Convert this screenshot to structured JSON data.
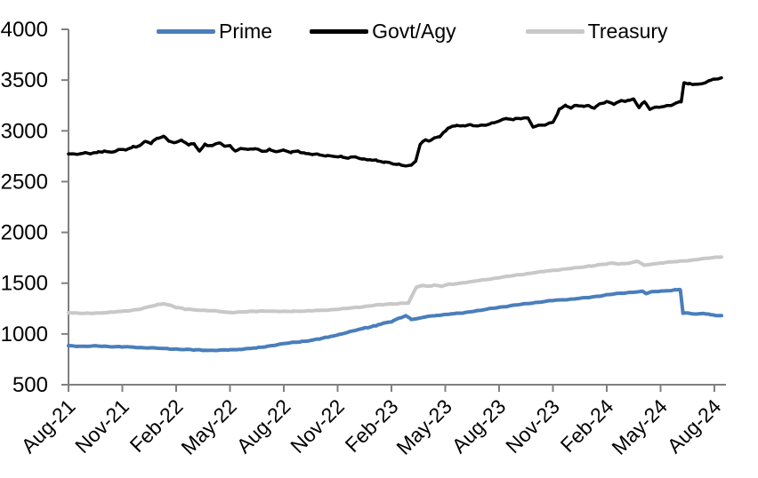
{
  "chart_data": {
    "type": "line",
    "title": "",
    "grid": false,
    "legend_position": "top",
    "x_axis": {
      "unit": "months since Aug-2021",
      "tick_interval_months": 3,
      "tick_labels": [
        "Aug-21",
        "Nov-21",
        "Feb-22",
        "May-22",
        "Aug-22",
        "Nov-22",
        "Feb-23",
        "May-23",
        "Aug-23",
        "Nov-23",
        "Feb-24",
        "May-24",
        "Aug-24"
      ],
      "range_months": [
        0,
        36.6
      ]
    },
    "y_axis": {
      "min": 500,
      "max": 4000,
      "tick_step": 500,
      "tick_labels": [
        "4000",
        "3500",
        "3000",
        "2500",
        "2000",
        "1500",
        "1000",
        "500"
      ]
    },
    "series": [
      {
        "name": "Prime",
        "color": "#4a7ebb",
        "points": [
          [
            0,
            885
          ],
          [
            0.5,
            880
          ],
          [
            1,
            878
          ],
          [
            1.5,
            882
          ],
          [
            2,
            878
          ],
          [
            2.5,
            874
          ],
          [
            3,
            872
          ],
          [
            3.5,
            870
          ],
          [
            4,
            866
          ],
          [
            4.5,
            864
          ],
          [
            5,
            860
          ],
          [
            5.5,
            855
          ],
          [
            6,
            850
          ],
          [
            6.5,
            846
          ],
          [
            7,
            843
          ],
          [
            7.5,
            840
          ],
          [
            8,
            838
          ],
          [
            8.5,
            840
          ],
          [
            9,
            844
          ],
          [
            9.5,
            848
          ],
          [
            10,
            855
          ],
          [
            10.5,
            862
          ],
          [
            11,
            875
          ],
          [
            11.5,
            890
          ],
          [
            12,
            905
          ],
          [
            12.5,
            915
          ],
          [
            13,
            925
          ],
          [
            13.5,
            938
          ],
          [
            14,
            952
          ],
          [
            14.5,
            970
          ],
          [
            15,
            990
          ],
          [
            15.5,
            1012
          ],
          [
            16,
            1035
          ],
          [
            16.5,
            1058
          ],
          [
            17,
            1078
          ],
          [
            17.1,
            1075
          ],
          [
            17.25,
            1092
          ],
          [
            17.6,
            1105
          ],
          [
            18,
            1122
          ],
          [
            18.4,
            1152
          ],
          [
            18.8,
            1180
          ],
          [
            19.1,
            1145
          ],
          [
            19.5,
            1150
          ],
          [
            20,
            1172
          ],
          [
            20.5,
            1183
          ],
          [
            21,
            1192
          ],
          [
            21.5,
            1200
          ],
          [
            22,
            1208
          ],
          [
            22.5,
            1222
          ],
          [
            23,
            1232
          ],
          [
            23.5,
            1248
          ],
          [
            24,
            1262
          ],
          [
            24.5,
            1275
          ],
          [
            25,
            1288
          ],
          [
            25.5,
            1298
          ],
          [
            26,
            1308
          ],
          [
            26.5,
            1318
          ],
          [
            27,
            1328
          ],
          [
            27.5,
            1335
          ],
          [
            28,
            1342
          ],
          [
            28.5,
            1352
          ],
          [
            29,
            1360
          ],
          [
            29.5,
            1372
          ],
          [
            30,
            1385
          ],
          [
            30.5,
            1395
          ],
          [
            31,
            1402
          ],
          [
            31.5,
            1412
          ],
          [
            32,
            1420
          ],
          [
            32.2,
            1398
          ],
          [
            32.5,
            1415
          ],
          [
            33,
            1422
          ],
          [
            33.4,
            1428
          ],
          [
            33.8,
            1432
          ],
          [
            34.1,
            1437
          ],
          [
            34.25,
            1205
          ],
          [
            34.6,
            1202
          ],
          [
            35,
            1196
          ],
          [
            35.4,
            1202
          ],
          [
            35.8,
            1190
          ],
          [
            36.1,
            1182
          ],
          [
            36.4,
            1180
          ]
        ]
      },
      {
        "name": "Govt/Agy",
        "color": "#000000",
        "points": [
          [
            0,
            2780
          ],
          [
            0.4,
            2768
          ],
          [
            0.8,
            2778
          ],
          [
            1.2,
            2772
          ],
          [
            1.6,
            2788
          ],
          [
            2,
            2800
          ],
          [
            2.4,
            2792
          ],
          [
            2.8,
            2812
          ],
          [
            3.2,
            2820
          ],
          [
            3.6,
            2838
          ],
          [
            4,
            2862
          ],
          [
            4.3,
            2898
          ],
          [
            4.6,
            2878
          ],
          [
            5,
            2928
          ],
          [
            5.3,
            2945
          ],
          [
            5.6,
            2902
          ],
          [
            6,
            2882
          ],
          [
            6.3,
            2908
          ],
          [
            6.7,
            2862
          ],
          [
            7,
            2878
          ],
          [
            7.3,
            2802
          ],
          [
            7.6,
            2868
          ],
          [
            8,
            2852
          ],
          [
            8.4,
            2886
          ],
          [
            8.7,
            2840
          ],
          [
            9,
            2858
          ],
          [
            9.3,
            2792
          ],
          [
            9.6,
            2832
          ],
          [
            10,
            2812
          ],
          [
            10.4,
            2825
          ],
          [
            10.8,
            2802
          ],
          [
            11.2,
            2815
          ],
          [
            11.6,
            2800
          ],
          [
            12,
            2805
          ],
          [
            12.4,
            2790
          ],
          [
            12.8,
            2798
          ],
          [
            13.2,
            2778
          ],
          [
            13.6,
            2768
          ],
          [
            14,
            2762
          ],
          [
            14.4,
            2752
          ],
          [
            14.8,
            2758
          ],
          [
            15.2,
            2742
          ],
          [
            15.6,
            2735
          ],
          [
            16,
            2742
          ],
          [
            16.4,
            2722
          ],
          [
            16.8,
            2715
          ],
          [
            17.2,
            2705
          ],
          [
            17.6,
            2688
          ],
          [
            18,
            2682
          ],
          [
            18.4,
            2668
          ],
          [
            18.8,
            2662
          ],
          [
            19.1,
            2658
          ],
          [
            19.35,
            2705
          ],
          [
            19.6,
            2865
          ],
          [
            19.9,
            2918
          ],
          [
            20.1,
            2902
          ],
          [
            20.4,
            2928
          ],
          [
            20.7,
            2948
          ],
          [
            21,
            2995
          ],
          [
            21.3,
            3042
          ],
          [
            21.6,
            3048
          ],
          [
            22,
            3052
          ],
          [
            22.4,
            3062
          ],
          [
            22.8,
            3048
          ],
          [
            23.2,
            3058
          ],
          [
            23.6,
            3072
          ],
          [
            24,
            3105
          ],
          [
            24.4,
            3118
          ],
          [
            24.8,
            3108
          ],
          [
            25.2,
            3122
          ],
          [
            25.6,
            3128
          ],
          [
            25.9,
            3042
          ],
          [
            26.2,
            3052
          ],
          [
            26.6,
            3060
          ],
          [
            27,
            3085
          ],
          [
            27.35,
            3208
          ],
          [
            27.7,
            3255
          ],
          [
            28,
            3228
          ],
          [
            28.3,
            3252
          ],
          [
            28.7,
            3235
          ],
          [
            29,
            3248
          ],
          [
            29.3,
            3222
          ],
          [
            29.6,
            3268
          ],
          [
            30,
            3282
          ],
          [
            30.4,
            3268
          ],
          [
            30.8,
            3295
          ],
          [
            31.2,
            3302
          ],
          [
            31.5,
            3318
          ],
          [
            31.8,
            3232
          ],
          [
            32.1,
            3288
          ],
          [
            32.4,
            3212
          ],
          [
            32.8,
            3232
          ],
          [
            33.2,
            3242
          ],
          [
            33.6,
            3252
          ],
          [
            34,
            3278
          ],
          [
            34.15,
            3288
          ],
          [
            34.3,
            3478
          ],
          [
            34.6,
            3458
          ],
          [
            35,
            3468
          ],
          [
            35.3,
            3462
          ],
          [
            35.7,
            3492
          ],
          [
            36,
            3505
          ],
          [
            36.4,
            3522
          ]
        ]
      },
      {
        "name": "Treasury",
        "color": "#c8c8c8",
        "points": [
          [
            0,
            1210
          ],
          [
            0.5,
            1204
          ],
          [
            1,
            1202
          ],
          [
            1.5,
            1206
          ],
          [
            2,
            1210
          ],
          [
            2.5,
            1215
          ],
          [
            3,
            1222
          ],
          [
            3.5,
            1232
          ],
          [
            4,
            1245
          ],
          [
            4.5,
            1268
          ],
          [
            5,
            1288
          ],
          [
            5.3,
            1300
          ],
          [
            5.7,
            1282
          ],
          [
            6,
            1262
          ],
          [
            6.5,
            1245
          ],
          [
            7,
            1238
          ],
          [
            7.5,
            1232
          ],
          [
            8,
            1228
          ],
          [
            8.5,
            1220
          ],
          [
            9,
            1212
          ],
          [
            9.5,
            1216
          ],
          [
            10,
            1220
          ],
          [
            10.5,
            1224
          ],
          [
            11,
            1226
          ],
          [
            11.5,
            1222
          ],
          [
            12,
            1220
          ],
          [
            12.5,
            1224
          ],
          [
            13,
            1226
          ],
          [
            13.5,
            1229
          ],
          [
            14,
            1232
          ],
          [
            14.5,
            1236
          ],
          [
            15,
            1242
          ],
          [
            15.5,
            1250
          ],
          [
            16,
            1260
          ],
          [
            16.5,
            1270
          ],
          [
            17,
            1283
          ],
          [
            17.5,
            1290
          ],
          [
            18,
            1296
          ],
          [
            18.5,
            1300
          ],
          [
            18.95,
            1305
          ],
          [
            19.4,
            1462
          ],
          [
            19.7,
            1478
          ],
          [
            20,
            1470
          ],
          [
            20.4,
            1480
          ],
          [
            20.8,
            1472
          ],
          [
            21.2,
            1488
          ],
          [
            21.6,
            1495
          ],
          [
            22,
            1505
          ],
          [
            22.5,
            1515
          ],
          [
            23,
            1528
          ],
          [
            23.5,
            1540
          ],
          [
            24,
            1555
          ],
          [
            24.5,
            1568
          ],
          [
            25,
            1580
          ],
          [
            25.5,
            1592
          ],
          [
            26,
            1605
          ],
          [
            26.5,
            1615
          ],
          [
            27,
            1625
          ],
          [
            27.5,
            1635
          ],
          [
            28,
            1645
          ],
          [
            28.5,
            1655
          ],
          [
            29,
            1668
          ],
          [
            29.5,
            1680
          ],
          [
            30,
            1690
          ],
          [
            30.3,
            1696
          ],
          [
            30.7,
            1690
          ],
          [
            31,
            1692
          ],
          [
            31.4,
            1700
          ],
          [
            31.7,
            1715
          ],
          [
            32.1,
            1675
          ],
          [
            32.5,
            1688
          ],
          [
            33,
            1700
          ],
          [
            33.5,
            1708
          ],
          [
            34,
            1715
          ],
          [
            34.5,
            1722
          ],
          [
            35,
            1732
          ],
          [
            35.5,
            1742
          ],
          [
            36,
            1752
          ],
          [
            36.4,
            1762
          ]
        ]
      }
    ],
    "render_hints": {
      "draw_order": [
        2,
        0,
        1
      ],
      "line_width": [
        4,
        3.5,
        4
      ],
      "wiggle": [
        3.5,
        8,
        3.5
      ],
      "axis_color": "#808080"
    }
  }
}
